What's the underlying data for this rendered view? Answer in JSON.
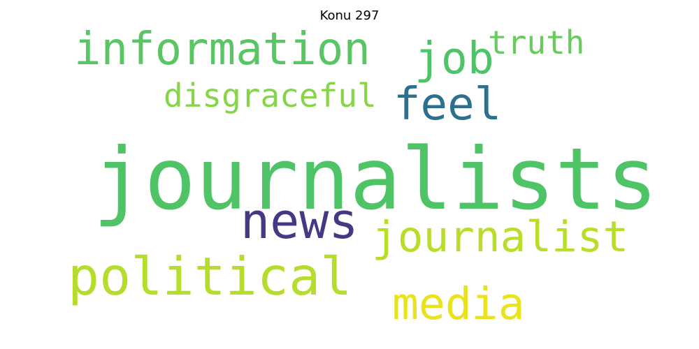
{
  "title": "Konu 297",
  "words": {
    "journalists": {
      "text": "journalists",
      "color": "#4fc466"
    },
    "information": {
      "text": "information",
      "color": "#5ac564"
    },
    "political": {
      "text": "political",
      "color": "#b5dd2b"
    },
    "journalist": {
      "text": "journalist",
      "color": "#b8de2a"
    },
    "news": {
      "text": "news",
      "color": "#463883"
    },
    "job": {
      "text": "job",
      "color": "#4ec468"
    },
    "feel": {
      "text": "feel",
      "color": "#2d6f8e"
    },
    "media": {
      "text": "media",
      "color": "#e8e31c"
    },
    "disgraceful": {
      "text": "disgraceful",
      "color": "#86d549"
    },
    "truth": {
      "text": "truth",
      "color": "#67cb5e"
    }
  }
}
